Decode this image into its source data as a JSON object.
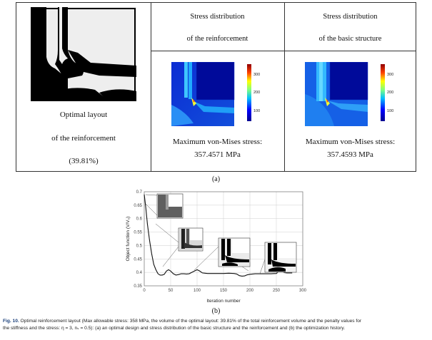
{
  "panel_a": {
    "col1": {
      "title_line1": "Optimal layout",
      "title_line2": "of the reinforcement",
      "percent": "(39.81%)"
    },
    "col2": {
      "header_line1": "Stress distribution",
      "header_line2": "of the reinforcement",
      "max_line1": "Maximum von-Mises stress:",
      "max_line2": "357.4571 MPa",
      "colorbar_ticks": [
        "300",
        "200",
        "100",
        "0"
      ]
    },
    "col3": {
      "header_line1": "Stress distribution",
      "header_line2": "of the basic structure",
      "max_line1": "Maximum von-Mises stress:",
      "max_line2": "357.4593 MPa",
      "colorbar_ticks": [
        "300",
        "200",
        "100",
        "0"
      ]
    },
    "label": "(a)"
  },
  "panel_b": {
    "label": "(b)",
    "ylabel": "Object function (V/V₀)",
    "xlabel": "Iteration number"
  },
  "caption": {
    "fig_label": "Fig. 10.",
    "line1_rest": " Optimal reinforcement layout (Max allowable stress: 358 MPa, the volume of the optimal layout: 39.81% of the total reinforcement volume and the penalty values for",
    "line2": "the stiffness and the stress: η = 3, nₛ = 0.5): (a) an optimal design and stress distribution of the basic structure and the reinforcement and (b) the optimization history."
  },
  "chart_data": {
    "type": "line",
    "xlabel": "Iteration number",
    "ylabel": "Object function (V/V₀)",
    "xlim": [
      0,
      300
    ],
    "ylim": [
      0.35,
      0.7
    ],
    "xticks": [
      0,
      50,
      100,
      150,
      200,
      250,
      300
    ],
    "yticks": [
      0.35,
      0.4,
      0.45,
      0.5,
      0.55,
      0.6,
      0.65,
      0.7
    ],
    "grid": true,
    "series": [
      {
        "x": [
          0,
          3,
          6,
          10,
          14,
          18,
          22,
          26,
          30,
          34,
          38,
          42,
          46,
          50,
          55,
          60,
          65,
          70,
          75,
          80,
          85,
          90,
          95,
          100,
          105,
          110,
          115,
          120,
          130,
          140,
          150,
          160,
          170,
          175,
          180,
          185,
          190,
          195,
          200,
          210,
          220,
          230,
          240,
          250,
          255,
          260,
          265,
          270,
          280
        ],
        "y": [
          0.69,
          0.64,
          0.58,
          0.52,
          0.47,
          0.43,
          0.41,
          0.395,
          0.39,
          0.39,
          0.393,
          0.405,
          0.41,
          0.405,
          0.395,
          0.39,
          0.392,
          0.395,
          0.395,
          0.394,
          0.395,
          0.4,
          0.405,
          0.41,
          0.405,
          0.398,
          0.397,
          0.396,
          0.396,
          0.396,
          0.396,
          0.397,
          0.396,
          0.394,
          0.388,
          0.386,
          0.387,
          0.391,
          0.393,
          0.395,
          0.395,
          0.395,
          0.395,
          0.396,
          0.404,
          0.404,
          0.399,
          0.398,
          0.398
        ]
      }
    ]
  }
}
